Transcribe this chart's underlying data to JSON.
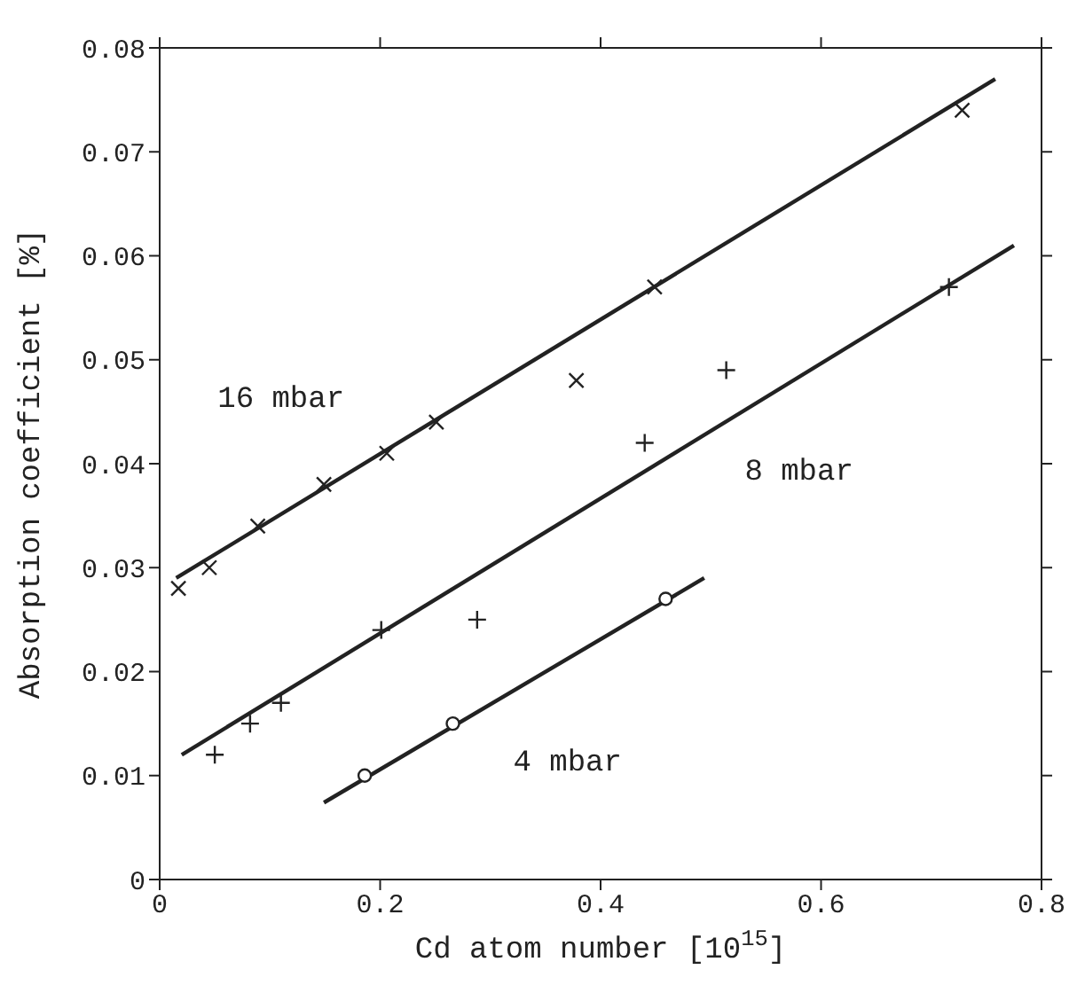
{
  "chart_data": {
    "type": "scatter",
    "xlabel": "Cd atom number [10$^{15}$]",
    "ylabel": "Absorption coefficient [%]",
    "xlim": [
      0,
      0.8
    ],
    "xticks": [
      0,
      0.2,
      0.4,
      0.6,
      0.8
    ],
    "ylim": [
      0,
      0.08
    ],
    "yticks": [
      0,
      0.01,
      0.02,
      0.03,
      0.04,
      0.05,
      0.06,
      0.07,
      0.08
    ],
    "series": [
      {
        "marker": "cross",
        "color": "#222222",
        "x": [
          0.017,
          0.045,
          0.089,
          0.149,
          0.206,
          0.251,
          0.378,
          0.449,
          0.728
        ],
        "values": [
          0.028,
          0.03,
          0.034,
          0.038,
          0.041,
          0.044,
          0.048,
          0.057,
          0.074
        ]
      },
      {
        "marker": "plus",
        "color": "#222222",
        "x": [
          0.05,
          0.082,
          0.11,
          0.201,
          0.288,
          0.44,
          0.514,
          0.716
        ],
        "values": [
          0.012,
          0.015,
          0.017,
          0.024,
          0.025,
          0.042,
          0.049,
          0.057
        ]
      },
      {
        "marker": "circle",
        "color": "#222222",
        "x": [
          0.186,
          0.266,
          0.459
        ],
        "values": [
          0.01,
          0.015,
          0.027
        ]
      },
      {
        "type": "line",
        "color": "#222222",
        "x": [
          0.015,
          0.758
        ],
        "values": [
          0.029,
          0.077
        ]
      },
      {
        "type": "line",
        "color": "#222222",
        "x": [
          0.02,
          0.775
        ],
        "values": [
          0.012,
          0.061
        ]
      },
      {
        "type": "line",
        "color": "#222222",
        "x": [
          0.149,
          0.494
        ],
        "values": [
          0.0074,
          0.029
        ]
      }
    ],
    "annotations": [
      "16 mbar",
      "8 mbar",
      "4 mbar"
    ]
  }
}
